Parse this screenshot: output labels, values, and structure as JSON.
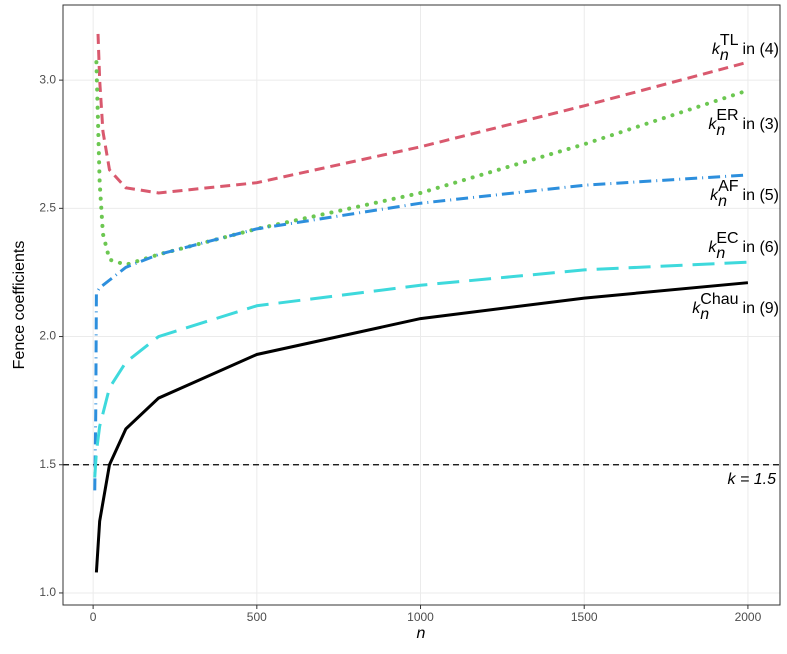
{
  "chart_data": {
    "type": "line",
    "ylabel": "Fence coefficients",
    "xlabel": "n",
    "xlim": [
      -92,
      2098
    ],
    "ylim": [
      0.953,
      3.293
    ],
    "xticks": [
      0,
      500,
      1000,
      1500,
      2000
    ],
    "yticks": [
      {
        "value": 1,
        "label": "1.0"
      },
      1.5,
      {
        "value": 2,
        "label": "2.0"
      },
      2.5,
      {
        "value": 3,
        "label": "3.0"
      }
    ],
    "grid": true,
    "label_symbol": "k",
    "label_subscript": "n",
    "series": [
      {
        "name": "TL",
        "label_text": "in (4)",
        "color": "#d9596e",
        "linestyle": "dashed",
        "x": [
          15,
          20,
          30,
          50,
          100,
          200,
          500,
          1000,
          1500,
          2000
        ],
        "values": [
          3.18,
          3.0,
          2.8,
          2.65,
          2.58,
          2.56,
          2.6,
          2.74,
          2.9,
          3.07
        ]
      },
      {
        "name": "ER",
        "label_text": "in (3)",
        "color": "#6cc751",
        "linestyle": "dotted",
        "x": [
          10,
          20,
          30,
          50,
          100,
          200,
          500,
          1000,
          1500,
          2000
        ],
        "values": [
          3.07,
          2.6,
          2.4,
          2.3,
          2.28,
          2.32,
          2.42,
          2.56,
          2.75,
          2.96
        ]
      },
      {
        "name": "AF",
        "label_text": "in (5)",
        "color": "#2d8fdd",
        "linestyle": "dotdash",
        "x": [
          5,
          8,
          10,
          20,
          50,
          100,
          200,
          500,
          1000,
          1500,
          2000
        ],
        "values": [
          1.4,
          1.7,
          2.17,
          2.19,
          2.22,
          2.27,
          2.32,
          2.42,
          2.52,
          2.59,
          2.63
        ]
      },
      {
        "name": "EC",
        "label_text": "in (6)",
        "color": "#3ed9dc",
        "linestyle": "longdash",
        "x": [
          5,
          10,
          20,
          50,
          100,
          200,
          500,
          1000,
          1500,
          2000
        ],
        "values": [
          1.45,
          1.55,
          1.65,
          1.8,
          1.9,
          2.0,
          2.12,
          2.2,
          2.26,
          2.29
        ]
      },
      {
        "name": "Chau",
        "label_text": "in (9)",
        "color": "#000000",
        "linestyle": "solid",
        "x": [
          10,
          20,
          50,
          100,
          200,
          500,
          1000,
          1500,
          2000
        ],
        "values": [
          1.08,
          1.28,
          1.5,
          1.64,
          1.76,
          1.93,
          2.07,
          2.15,
          2.21
        ]
      }
    ],
    "hline": {
      "value": 1.5,
      "label": "k = 1.5",
      "color": "#000000",
      "linestyle": "dashed"
    }
  }
}
